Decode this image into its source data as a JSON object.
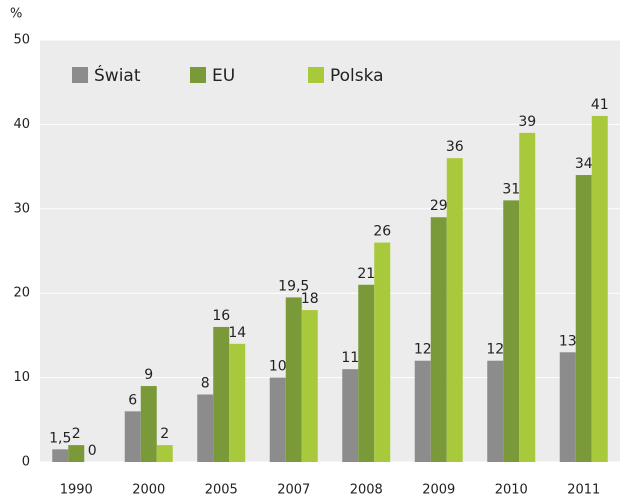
{
  "chart_data": {
    "type": "bar",
    "y_label": "%",
    "categories": [
      "1990",
      "2000",
      "2005",
      "2007",
      "2008",
      "2009",
      "2010",
      "2011"
    ],
    "series": [
      {
        "name": "Świat",
        "color": "#8c8c8c",
        "values": [
          1.5,
          6,
          8,
          10,
          11,
          12,
          12,
          13
        ],
        "value_labels": [
          "1,5",
          "6",
          "8",
          "10",
          "11",
          "12",
          "12",
          "13"
        ]
      },
      {
        "name": "EU",
        "color": "#7a9a3a",
        "values": [
          2,
          9,
          16,
          19.5,
          21,
          29,
          31,
          34
        ],
        "value_labels": [
          "2",
          "9",
          "16",
          "19,5",
          "21",
          "29",
          "31",
          "34"
        ]
      },
      {
        "name": "Polska",
        "color": "#a9c93d",
        "values": [
          0,
          2,
          14,
          18,
          26,
          36,
          39,
          41
        ],
        "value_labels": [
          "0",
          "2",
          "14",
          "18",
          "26",
          "36",
          "39",
          "41"
        ]
      }
    ],
    "ylim": [
      0,
      50
    ],
    "yticks": [
      0,
      10,
      20,
      30,
      40,
      50
    ],
    "grid": true,
    "legend": "top-left"
  }
}
